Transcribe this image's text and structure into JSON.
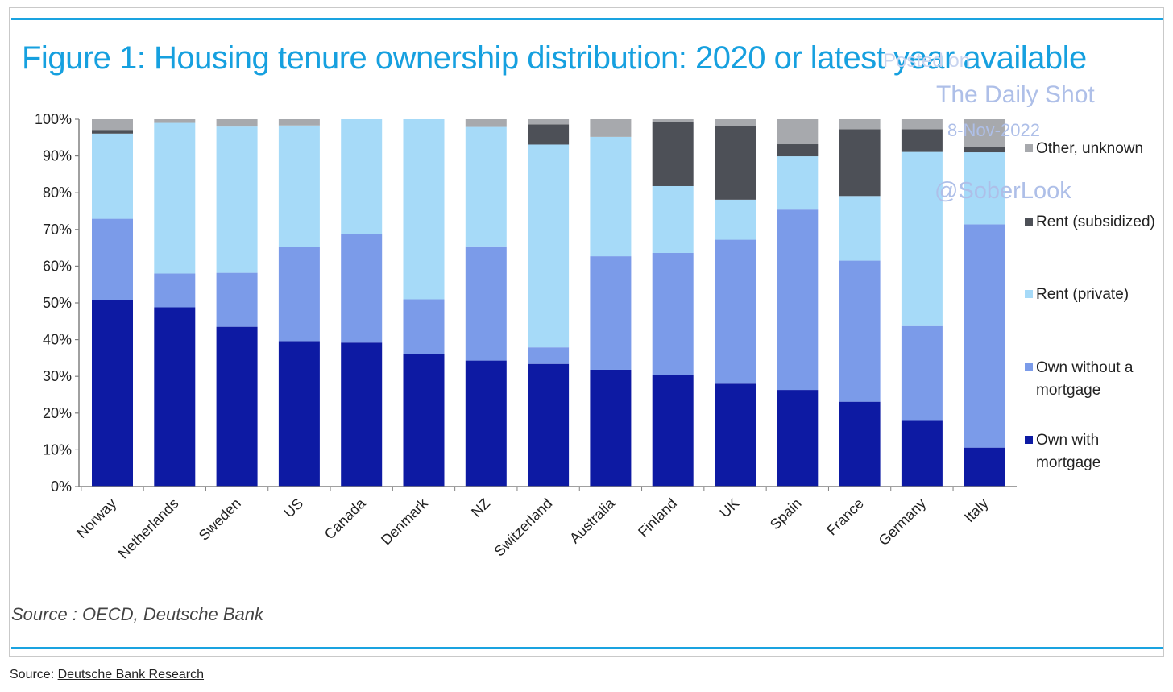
{
  "figure": {
    "title": "Figure 1: Housing tenure ownership distribution: 2020 or latest year available",
    "source_text": "Source : OECD, Deutsche Bank"
  },
  "watermark": {
    "line1": "Posted on",
    "line2": "The Daily Shot",
    "line3": "8-Nov-2022",
    "line4": "@SoberLook"
  },
  "page_source": {
    "prefix": "Source: ",
    "link_text": "Deutsche Bank Research"
  },
  "chart_data": {
    "type": "bar",
    "stacked": true,
    "title": "Figure 1: Housing tenure ownership distribution: 2020 or latest year available",
    "xlabel": "",
    "ylabel": "",
    "ylim": [
      0,
      100
    ],
    "y_ticks": [
      "0%",
      "10%",
      "20%",
      "30%",
      "40%",
      "50%",
      "60%",
      "70%",
      "80%",
      "90%",
      "100%"
    ],
    "legend_position": "right",
    "grid": false,
    "categories": [
      "Norway",
      "Netherlands",
      "Sweden",
      "US",
      "Canada",
      "Denmark",
      "NZ",
      "Switzerland",
      "Australia",
      "Finland",
      "UK",
      "Spain",
      "France",
      "Germany",
      "Italy"
    ],
    "series": [
      {
        "name": "Own with mortgage",
        "color": "#0d1aa3",
        "values": [
          50.7,
          48.8,
          43.5,
          39.6,
          39.2,
          36.1,
          34.3,
          33.4,
          31.8,
          30.4,
          28.0,
          26.3,
          23.1,
          18.1,
          10.6
        ]
      },
      {
        "name": "Own without a mortgage",
        "color": "#7b9be9",
        "values": [
          22.2,
          9.2,
          14.7,
          25.7,
          29.6,
          14.9,
          31.1,
          4.5,
          30.9,
          33.2,
          39.2,
          49.1,
          38.4,
          25.6,
          60.8
        ]
      },
      {
        "name": "Rent (private)",
        "color": "#a6daf8",
        "values": [
          23.2,
          41.0,
          39.8,
          33.0,
          31.2,
          49.0,
          32.5,
          55.2,
          32.5,
          18.2,
          10.9,
          14.5,
          17.6,
          47.4,
          19.6
        ]
      },
      {
        "name": "Rent (subsidized)",
        "color": "#4d5057",
        "values": [
          1.0,
          0.0,
          0.0,
          0.0,
          0.0,
          0.0,
          0.0,
          5.5,
          0.0,
          17.4,
          20.0,
          3.3,
          18.2,
          6.2,
          1.5
        ]
      },
      {
        "name": "Other, unknown",
        "color": "#a7a9ad",
        "values": [
          2.9,
          1.0,
          2.0,
          1.7,
          0.0,
          0.0,
          2.1,
          1.4,
          4.8,
          0.8,
          1.9,
          6.8,
          2.7,
          2.7,
          7.5
        ]
      }
    ],
    "legend_order": [
      "Other, unknown",
      "Rent (subsidized)",
      "Rent (private)",
      "Own without a mortgage",
      "Own with mortgage"
    ]
  }
}
